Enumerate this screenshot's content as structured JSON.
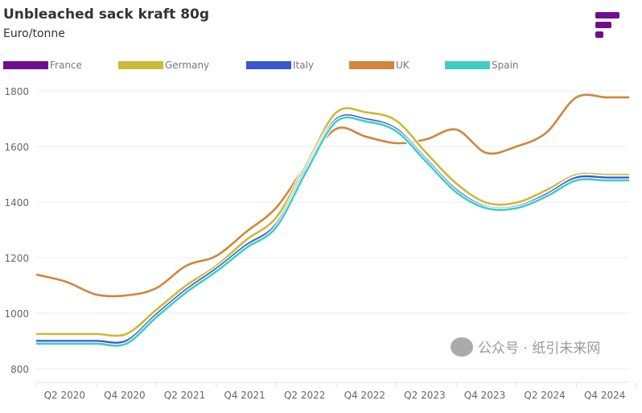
{
  "chart_data": {
    "type": "line",
    "title": "Unbleached sack kraft 80g",
    "subtitle": "Euro/tonne",
    "x": [
      "Q1 2020",
      "Q2 2020",
      "Q3 2020",
      "Q4 2020",
      "Q1 2021",
      "Q2 2021",
      "Q3 2021",
      "Q4 2021",
      "Q1 2022",
      "Q2 2022",
      "Q3 2022",
      "Q4 2022",
      "Q1 2023",
      "Q2 2023",
      "Q3 2023",
      "Q4 2023",
      "Q1 2024",
      "Q2 2024",
      "Q3 2024",
      "Q4 2024"
    ],
    "xtick_labels": [
      "Q2 2020",
      "Q4 2020",
      "Q2 2021",
      "Q4 2021",
      "Q2 2022",
      "Q4 2022",
      "Q2 2023",
      "Q4 2023",
      "Q2 2024",
      "Q4 2024"
    ],
    "yticks": [
      800,
      1000,
      1200,
      1400,
      1600,
      1800
    ],
    "ylim": [
      750,
      1800
    ],
    "grid": true,
    "legend_placement": "top",
    "series": [
      {
        "name": "France",
        "color": "#6f0f8f",
        "values": [
          900,
          900,
          900,
          900,
          995,
          1085,
          1160,
          1245,
          1320,
          1520,
          1700,
          1700,
          1665,
          1555,
          1445,
          1385,
          1385,
          1430,
          1490,
          1490
        ]
      },
      {
        "name": "Germany",
        "color": "#cdb935",
        "values": [
          925,
          925,
          925,
          925,
          1012,
          1100,
          1170,
          1264,
          1345,
          1533,
          1723,
          1723,
          1693,
          1577,
          1467,
          1398,
          1398,
          1443,
          1498,
          1498
        ]
      },
      {
        "name": "Italy",
        "color": "#3a55d0",
        "values": [
          900,
          900,
          900,
          900,
          995,
          1085,
          1160,
          1245,
          1320,
          1520,
          1698,
          1698,
          1663,
          1553,
          1443,
          1383,
          1383,
          1428,
          1488,
          1488
        ]
      },
      {
        "name": "UK",
        "color": "#d0863c",
        "values": [
          1139,
          1113,
          1067,
          1064,
          1090,
          1171,
          1206,
          1293,
          1380,
          1533,
          1664,
          1635,
          1612,
          1626,
          1661,
          1577,
          1600,
          1650,
          1777,
          1777
        ]
      },
      {
        "name": "Spain",
        "color": "#3dcfc4",
        "values": [
          890,
          890,
          890,
          890,
          985,
          1075,
          1150,
          1235,
          1310,
          1510,
          1690,
          1690,
          1655,
          1545,
          1435,
          1378,
          1378,
          1420,
          1478,
          1478
        ]
      }
    ]
  },
  "watermark": "公众号 · 纸引未来网",
  "logo_color": "#6f0f8f"
}
